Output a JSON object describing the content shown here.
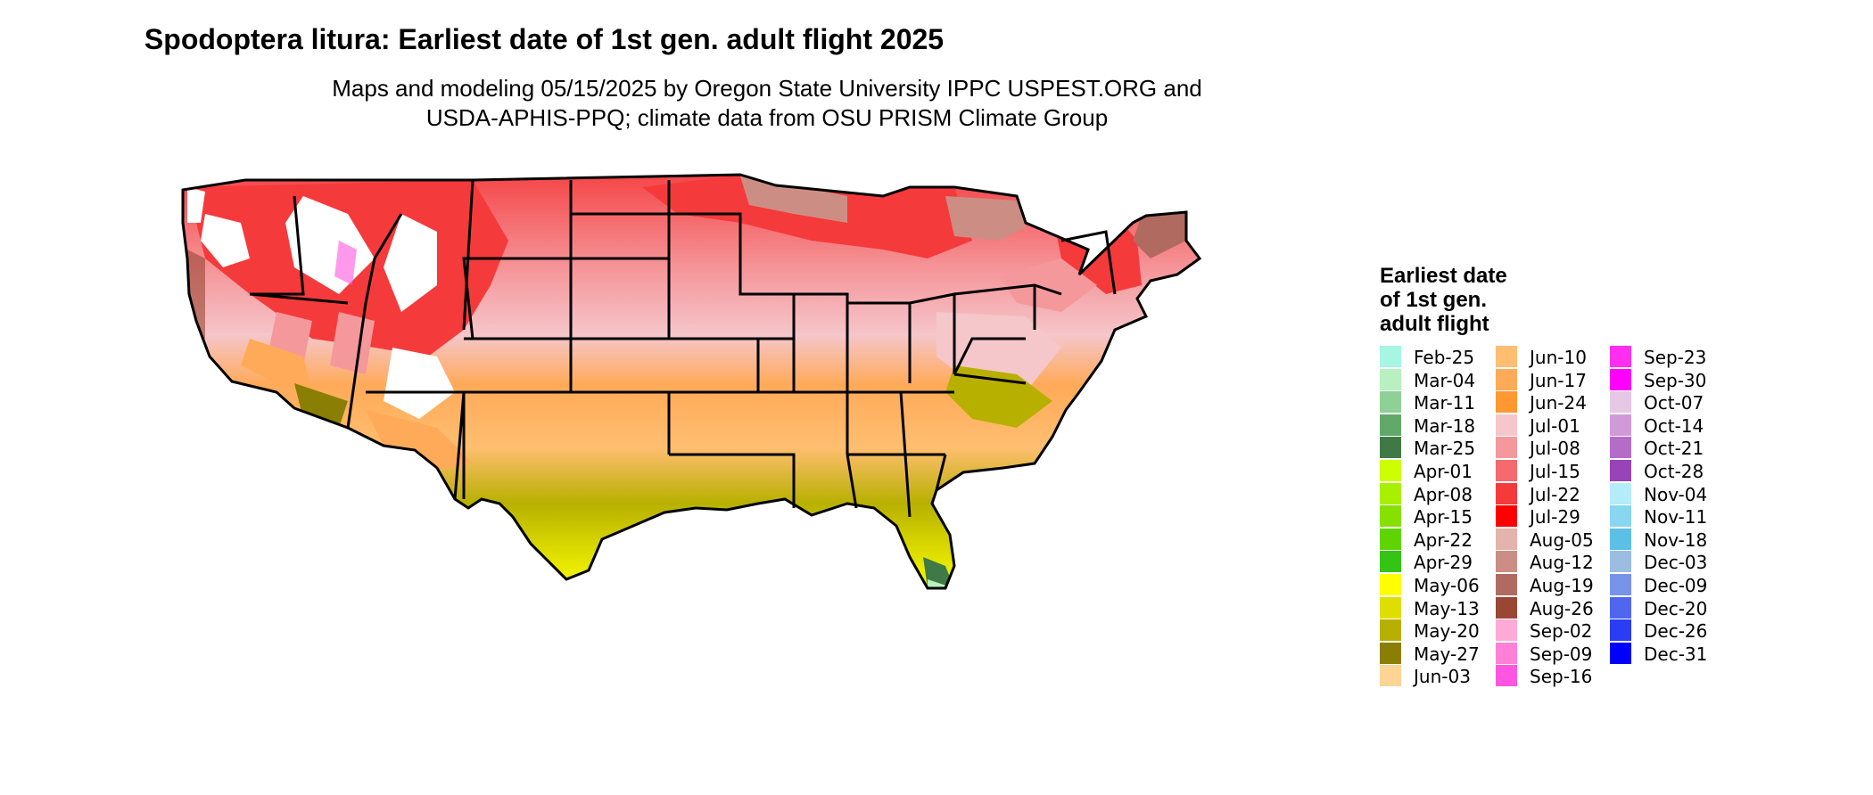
{
  "header": {
    "title": "Spodoptera litura: Earliest date of 1st gen. adult flight 2025",
    "subtitle_line1": "Maps and modeling 05/15/2025 by Oregon State University IPPC USPEST.ORG and",
    "subtitle_line2": "USDA-APHIS-PPQ; climate data from OSU PRISM Climate Group"
  },
  "legend": {
    "title_line1": "Earliest date",
    "title_line2": "of 1st gen.",
    "title_line3": "adult flight",
    "columns": [
      [
        {
          "label": "Feb-25",
          "color": "#a7f5e3"
        },
        {
          "label": "Mar-04",
          "color": "#b8f0c0"
        },
        {
          "label": "Mar-11",
          "color": "#8ed096"
        },
        {
          "label": "Mar-18",
          "color": "#62a86a"
        },
        {
          "label": "Mar-25",
          "color": "#3f7a46"
        },
        {
          "label": "Apr-01",
          "color": "#ccff00"
        },
        {
          "label": "Apr-08",
          "color": "#a8f000"
        },
        {
          "label": "Apr-15",
          "color": "#86e000"
        },
        {
          "label": "Apr-22",
          "color": "#5ed400"
        },
        {
          "label": "Apr-29",
          "color": "#34c414"
        },
        {
          "label": "May-06",
          "color": "#ffff00"
        },
        {
          "label": "May-13",
          "color": "#dede00"
        },
        {
          "label": "May-20",
          "color": "#b8b000"
        },
        {
          "label": "May-27",
          "color": "#8a7e04"
        },
        {
          "label": "Jun-03",
          "color": "#ffd494"
        }
      ],
      [
        {
          "label": "Jun-10",
          "color": "#ffbe70"
        },
        {
          "label": "Jun-17",
          "color": "#ffaa58"
        },
        {
          "label": "Jun-24",
          "color": "#ff9830"
        },
        {
          "label": "Jul-01",
          "color": "#f5c6ca"
        },
        {
          "label": "Jul-08",
          "color": "#f5989c"
        },
        {
          "label": "Jul-15",
          "color": "#f56a6e"
        },
        {
          "label": "Jul-22",
          "color": "#f53a3c"
        },
        {
          "label": "Jul-29",
          "color": "#ff0000"
        },
        {
          "label": "Aug-05",
          "color": "#e2b4aa"
        },
        {
          "label": "Aug-12",
          "color": "#cc8e84"
        },
        {
          "label": "Aug-19",
          "color": "#b06a60"
        },
        {
          "label": "Aug-26",
          "color": "#9a4634"
        },
        {
          "label": "Sep-02",
          "color": "#ffaad6"
        },
        {
          "label": "Sep-09",
          "color": "#ff80d6"
        },
        {
          "label": "Sep-16",
          "color": "#ff55e0"
        }
      ],
      [
        {
          "label": "Sep-23",
          "color": "#ff2ef0"
        },
        {
          "label": "Sep-30",
          "color": "#ff00ff"
        },
        {
          "label": "Oct-07",
          "color": "#e6c8e6"
        },
        {
          "label": "Oct-14",
          "color": "#d09ad8"
        },
        {
          "label": "Oct-21",
          "color": "#b46cc8"
        },
        {
          "label": "Oct-28",
          "color": "#9844b8"
        },
        {
          "label": "Nov-04",
          "color": "#b4ecfa"
        },
        {
          "label": "Nov-11",
          "color": "#88d6f0"
        },
        {
          "label": "Nov-18",
          "color": "#5cc0e6"
        },
        {
          "label": "Dec-03",
          "color": "#9cbde2"
        },
        {
          "label": "Dec-09",
          "color": "#7894e8"
        },
        {
          "label": "Dec-20",
          "color": "#5066ee"
        },
        {
          "label": "Dec-26",
          "color": "#2a3cf4"
        },
        {
          "label": "Dec-31",
          "color": "#0000ff"
        }
      ]
    ]
  }
}
